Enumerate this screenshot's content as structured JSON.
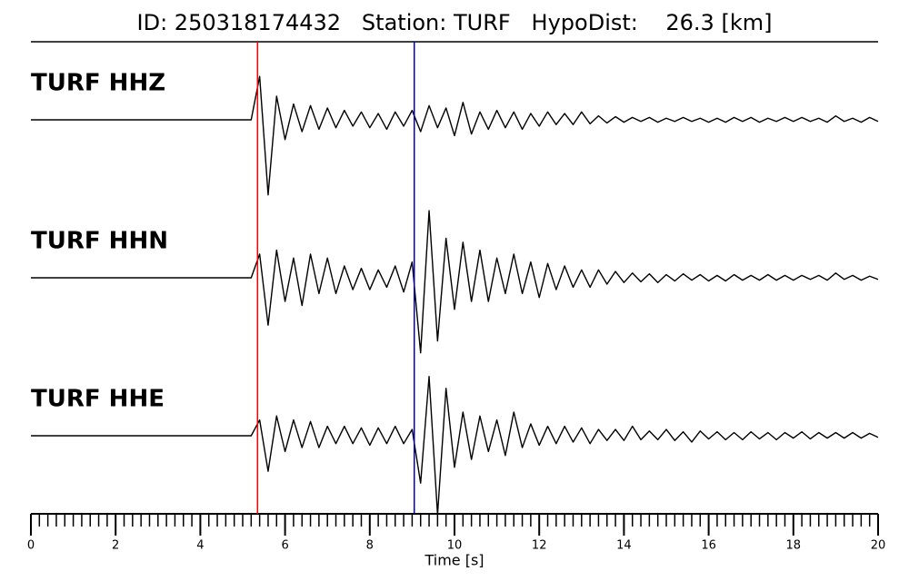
{
  "chart_data": {
    "type": "line",
    "title": "ID: 250318174432   Station: TURF   HypoDist:    26.3 [km]",
    "xlabel": "Time [s]",
    "xlim": [
      0,
      20
    ],
    "ylim": [
      -1,
      1
    ],
    "xticks": [
      0,
      2,
      4,
      6,
      8,
      10,
      12,
      14,
      16,
      18,
      20
    ],
    "xminorticks": [
      0.2,
      0.4,
      0.6,
      0.8,
      1,
      1.2,
      1.4,
      1.6,
      1.8,
      2.2,
      2.4,
      2.6,
      2.8,
      3,
      3.2,
      3.4,
      3.6,
      3.8,
      4.2,
      4.4,
      4.6,
      4.8,
      5,
      5.2,
      5.4,
      5.6,
      5.8,
      6.2,
      6.4,
      6.6,
      6.8,
      7,
      7.2,
      7.4,
      7.6,
      7.8,
      8.2,
      8.4,
      8.6,
      8.8,
      9,
      9.2,
      9.4,
      9.6,
      9.8,
      10.2,
      10.4,
      10.6,
      10.8,
      11,
      11.2,
      11.4,
      11.6,
      11.8,
      12.2,
      12.4,
      12.6,
      12.8,
      13,
      13.2,
      13.4,
      13.6,
      13.8,
      14.2,
      14.4,
      14.6,
      14.8,
      15,
      15.2,
      15.4,
      15.6,
      15.8,
      16.2,
      16.4,
      16.6,
      16.8,
      17,
      17.2,
      17.4,
      17.6,
      17.8,
      18.2,
      18.4,
      18.6,
      18.8,
      19,
      19.2,
      19.4,
      19.6,
      19.8
    ],
    "label_color": "#4e9a06",
    "markers": [
      {
        "x": 5.35,
        "color": "#ff0000"
      },
      {
        "x": 9.05,
        "color": "#0000c0"
      }
    ],
    "x": [
      0,
      0.2,
      0.4,
      0.6,
      0.8,
      1,
      1.2,
      1.4,
      1.6,
      1.8,
      2,
      2.2,
      2.4,
      2.6,
      2.8,
      3,
      3.2,
      3.4,
      3.6,
      3.8,
      4,
      4.2,
      4.4,
      4.6,
      4.8,
      5,
      5.2,
      5.4,
      5.6,
      5.8,
      6,
      6.2,
      6.4,
      6.6,
      6.8,
      7,
      7.2,
      7.4,
      7.6,
      7.8,
      8,
      8.2,
      8.4,
      8.6,
      8.8,
      9,
      9.2,
      9.4,
      9.6,
      9.8,
      10,
      10.2,
      10.4,
      10.6,
      10.8,
      11,
      11.2,
      11.4,
      11.6,
      11.8,
      12,
      12.2,
      12.4,
      12.6,
      12.8,
      13,
      13.2,
      13.4,
      13.6,
      13.8,
      14,
      14.2,
      14.4,
      14.6,
      14.8,
      15,
      15.2,
      15.4,
      15.6,
      15.8,
      16,
      16.2,
      16.4,
      16.6,
      16.8,
      17,
      17.2,
      17.4,
      17.6,
      17.8,
      18,
      18.2,
      18.4,
      18.6,
      18.8,
      19,
      19.2,
      19.4,
      19.6,
      19.8,
      20
    ],
    "series": [
      {
        "name": "TURF HHZ",
        "color": "#000000",
        "values": [
          0,
          0,
          0,
          0,
          0,
          0,
          0,
          0,
          0,
          0,
          0,
          0,
          0,
          0,
          0,
          0,
          0,
          0,
          0,
          0,
          0,
          0,
          0,
          0,
          0,
          0,
          0,
          0.55,
          -0.95,
          0.3,
          -0.25,
          0.2,
          -0.15,
          0.18,
          -0.12,
          0.15,
          -0.1,
          0.12,
          -0.08,
          0.1,
          -0.1,
          0.08,
          -0.12,
          0.1,
          -0.08,
          0.12,
          -0.15,
          0.18,
          -0.1,
          0.15,
          -0.2,
          0.22,
          -0.18,
          0.1,
          -0.12,
          0.12,
          -0.1,
          0.1,
          -0.12,
          0.08,
          -0.08,
          0.1,
          -0.06,
          0.08,
          -0.06,
          0.1,
          -0.05,
          0.05,
          -0.04,
          0.04,
          -0.03,
          0.03,
          -0.02,
          0.03,
          -0.03,
          0.02,
          -0.02,
          0.03,
          -0.02,
          0.02,
          -0.03,
          0.02,
          -0.03,
          0.03,
          -0.02,
          0.03,
          -0.03,
          0.02,
          -0.02,
          0.03,
          -0.02,
          0.03,
          -0.02,
          0.02,
          -0.03,
          0.05,
          -0.02,
          0.02,
          -0.03,
          0.03,
          -0.02
        ]
      },
      {
        "name": "TURF HHN",
        "color": "#000000",
        "values": [
          0,
          0,
          0,
          0,
          0,
          0,
          0,
          0,
          0,
          0,
          0,
          0,
          0,
          0,
          0,
          0,
          0,
          0,
          0,
          0,
          0,
          0,
          0,
          0,
          0,
          0,
          0,
          0.3,
          -0.6,
          0.35,
          -0.3,
          0.25,
          -0.35,
          0.3,
          -0.2,
          0.25,
          -0.2,
          0.15,
          -0.15,
          0.12,
          -0.15,
          0.1,
          -0.12,
          0.15,
          -0.18,
          0.2,
          -0.95,
          0.85,
          -0.8,
          0.5,
          -0.4,
          0.45,
          -0.3,
          0.35,
          -0.3,
          0.25,
          -0.2,
          0.3,
          -0.2,
          0.2,
          -0.25,
          0.18,
          -0.15,
          0.15,
          -0.12,
          0.1,
          -0.12,
          0.1,
          -0.08,
          0.08,
          -0.06,
          0.06,
          -0.05,
          0.05,
          -0.06,
          0.04,
          -0.04,
          0.05,
          -0.03,
          0.04,
          -0.04,
          0.03,
          -0.04,
          0.04,
          -0.03,
          0.03,
          -0.03,
          0.04,
          -0.03,
          0.03,
          -0.03,
          0.03,
          -0.02,
          0.03,
          -0.03,
          0.06,
          -0.02,
          0.03,
          -0.03,
          0.02,
          -0.02
        ]
      },
      {
        "name": "TURF HHE",
        "color": "#000000",
        "values": [
          0,
          0,
          0,
          0,
          0,
          0,
          0,
          0,
          0,
          0,
          0,
          0,
          0,
          0,
          0,
          0,
          0,
          0,
          0,
          0,
          0,
          0,
          0,
          0,
          0,
          0,
          0,
          0.2,
          -0.45,
          0.25,
          -0.2,
          0.2,
          -0.15,
          0.18,
          -0.15,
          0.12,
          -0.1,
          0.12,
          -0.1,
          0.1,
          -0.12,
          0.1,
          -0.1,
          0.12,
          -0.1,
          0.08,
          -0.6,
          0.75,
          -1.0,
          0.6,
          -0.4,
          0.3,
          -0.3,
          0.25,
          -0.2,
          0.2,
          -0.25,
          0.3,
          -0.15,
          0.15,
          -0.12,
          0.12,
          -0.1,
          0.12,
          -0.08,
          0.1,
          -0.1,
          0.08,
          -0.06,
          0.08,
          -0.06,
          0.12,
          -0.05,
          0.06,
          -0.05,
          0.08,
          -0.06,
          0.05,
          -0.08,
          0.06,
          -0.04,
          0.05,
          -0.05,
          0.04,
          -0.05,
          0.05,
          -0.04,
          0.04,
          -0.05,
          0.04,
          -0.03,
          0.05,
          -0.04,
          0.04,
          -0.03,
          0.04,
          -0.03,
          0.04,
          -0.03,
          0.03,
          -0.02
        ]
      }
    ]
  }
}
